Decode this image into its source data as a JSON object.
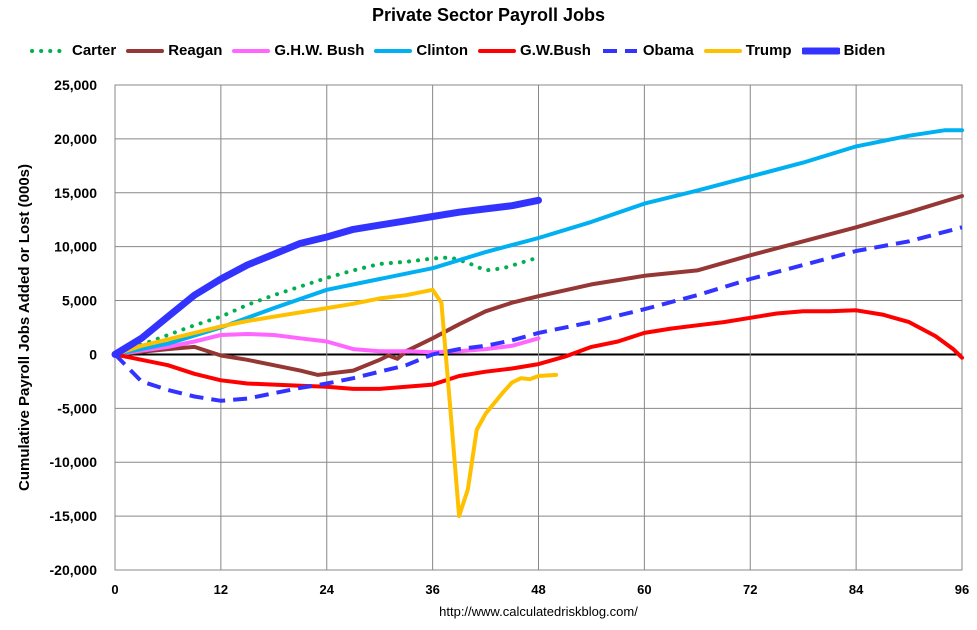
{
  "chart_data": {
    "type": "line",
    "title": "Private Sector Payroll Jobs",
    "xlabel": "",
    "ylabel": "Cumulative Payroll Jobs Added or  Lost (000s)",
    "source": "http://www.calculatedriskblog.com/",
    "xlim": [
      0,
      96
    ],
    "ylim": [
      -20000,
      25000
    ],
    "xticks": [
      0,
      12,
      24,
      36,
      48,
      60,
      72,
      84,
      96
    ],
    "yticks": [
      -20000,
      -15000,
      -10000,
      -5000,
      0,
      5000,
      10000,
      15000,
      20000,
      25000
    ],
    "ytick_labels": [
      "-20,000",
      "-15,000",
      "-10,000",
      "-5,000",
      "0",
      "5,000",
      "10,000",
      "15,000",
      "20,000",
      "25,000"
    ],
    "legend_position": "top",
    "series": [
      {
        "name": "Carter",
        "color": "#00B050",
        "style": "dotted",
        "x": [
          0,
          3,
          6,
          9,
          12,
          15,
          18,
          21,
          24,
          27,
          30,
          33,
          36,
          38,
          40,
          42,
          44,
          46,
          48
        ],
        "y": [
          0,
          900,
          1800,
          2700,
          3500,
          4600,
          5500,
          6300,
          7100,
          7800,
          8400,
          8600,
          8900,
          9000,
          8500,
          7800,
          8000,
          8500,
          9000
        ]
      },
      {
        "name": "Reagan",
        "color": "#953735",
        "style": "solid",
        "x": [
          0,
          6,
          9,
          12,
          15,
          18,
          21,
          23,
          24,
          27,
          30,
          31,
          32,
          33,
          36,
          39,
          42,
          45,
          48,
          54,
          60,
          66,
          72,
          78,
          84,
          90,
          96
        ],
        "y": [
          0,
          500,
          700,
          -100,
          -500,
          -1000,
          -1500,
          -1900,
          -1800,
          -1500,
          -500,
          -100,
          -400,
          300,
          1500,
          2800,
          4000,
          4800,
          5400,
          6500,
          7300,
          7800,
          9200,
          10500,
          11800,
          13200,
          14700
        ]
      },
      {
        "name": "G.H.W. Bush",
        "color": "#FF66FF",
        "style": "solid",
        "x": [
          0,
          6,
          9,
          12,
          15,
          18,
          21,
          24,
          27,
          30,
          33,
          36,
          39,
          42,
          45,
          48
        ],
        "y": [
          0,
          700,
          1200,
          1800,
          1900,
          1800,
          1500,
          1200,
          500,
          300,
          300,
          200,
          300,
          500,
          800,
          1500
        ]
      },
      {
        "name": "Clinton",
        "color": "#00B0F0",
        "style": "solid",
        "x": [
          0,
          6,
          12,
          18,
          24,
          30,
          36,
          42,
          48,
          54,
          60,
          66,
          72,
          78,
          84,
          90,
          94,
          96
        ],
        "y": [
          0,
          1000,
          2500,
          4300,
          6000,
          7000,
          8000,
          9500,
          10800,
          12300,
          14000,
          15200,
          16500,
          17800,
          19300,
          20300,
          20800,
          20800
        ]
      },
      {
        "name": "G.W.Bush",
        "color": "#FF0000",
        "style": "solid",
        "x": [
          0,
          3,
          6,
          9,
          12,
          15,
          18,
          21,
          24,
          27,
          30,
          33,
          36,
          39,
          42,
          45,
          48,
          51,
          54,
          57,
          60,
          63,
          66,
          69,
          72,
          75,
          78,
          81,
          84,
          87,
          90,
          93,
          95,
          96
        ],
        "y": [
          0,
          -500,
          -1000,
          -1800,
          -2400,
          -2700,
          -2800,
          -2900,
          -3000,
          -3200,
          -3200,
          -3000,
          -2800,
          -2000,
          -1600,
          -1300,
          -900,
          -200,
          700,
          1200,
          2000,
          2400,
          2700,
          3000,
          3400,
          3800,
          4000,
          4000,
          4100,
          3700,
          3000,
          1700,
          500,
          -300
        ]
      },
      {
        "name": "Obama",
        "color": "#3333FF",
        "style": "dashed",
        "x": [
          0,
          3,
          6,
          9,
          12,
          15,
          18,
          21,
          24,
          27,
          30,
          33,
          36,
          39,
          42,
          45,
          48,
          54,
          60,
          66,
          72,
          78,
          84,
          90,
          96
        ],
        "y": [
          0,
          -2500,
          -3300,
          -3900,
          -4300,
          -4100,
          -3600,
          -3100,
          -2700,
          -2200,
          -1600,
          -1000,
          0,
          500,
          800,
          1300,
          2000,
          3000,
          4200,
          5500,
          7000,
          8300,
          9600,
          10500,
          11800
        ]
      },
      {
        "name": "Trump",
        "color": "#FFC000",
        "style": "solid",
        "x": [
          0,
          3,
          6,
          9,
          12,
          15,
          18,
          21,
          24,
          27,
          30,
          33,
          36,
          37,
          38,
          39,
          40,
          41,
          42,
          43,
          44,
          45,
          46,
          47,
          48,
          50
        ],
        "y": [
          0,
          800,
          1400,
          2000,
          2600,
          3100,
          3500,
          3900,
          4300,
          4700,
          5200,
          5500,
          6000,
          4800,
          -5000,
          -15000,
          -12500,
          -7000,
          -5500,
          -4500,
          -3500,
          -2600,
          -2200,
          -2300,
          -2000,
          -1900
        ]
      },
      {
        "name": "Biden",
        "color": "#3333FF",
        "style": "thick",
        "x": [
          0,
          3,
          6,
          9,
          12,
          15,
          18,
          21,
          24,
          27,
          30,
          33,
          36,
          39,
          42,
          45,
          48
        ],
        "y": [
          0,
          1500,
          3500,
          5500,
          7000,
          8300,
          9300,
          10300,
          10900,
          11600,
          12000,
          12400,
          12800,
          13200,
          13500,
          13800,
          14300
        ]
      }
    ]
  }
}
